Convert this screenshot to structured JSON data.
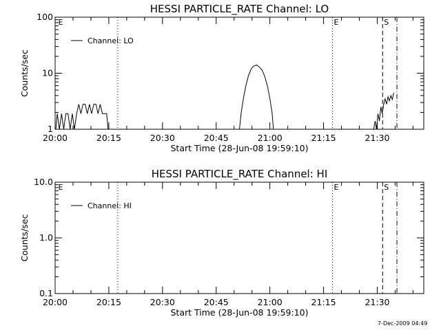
{
  "footer": {
    "timestamp": "7-Dec-2009 04:49"
  },
  "chart_data": [
    {
      "type": "line",
      "title": "HESSI PARTICLE_RATE Channel: LO",
      "xlabel": "Start Time (28-Jun-08 19:59:10)",
      "ylabel": "Counts/sec",
      "yscale": "log",
      "ylim": [
        1,
        100
      ],
      "y_ticks": [
        "1",
        "10",
        "100"
      ],
      "y_tick_values": [
        1,
        10,
        100
      ],
      "xlim_minutes_after_20_00": [
        0,
        103
      ],
      "x_ticks": [
        "20:00",
        "20:15",
        "20:30",
        "20:45",
        "21:00",
        "21:15",
        "21:30"
      ],
      "legend": {
        "label": "Channel: LO",
        "position": "top-left"
      },
      "markers": [
        {
          "label": "E",
          "minute": 0.5,
          "style": "none"
        },
        {
          "label": "",
          "minute": 17.5,
          "style": "dotted"
        },
        {
          "label": "E",
          "minute": 77.5,
          "style": "dotted"
        },
        {
          "label": "S",
          "minute": 91.5,
          "style": "dashed"
        },
        {
          "label": "",
          "minute": 95.5,
          "style": "dashdot"
        }
      ],
      "series": [
        {
          "name": "Channel: LO",
          "segments": [
            [
              [
                0.2,
                1
              ],
              [
                0.6,
                1.9
              ],
              [
                1.2,
                1
              ],
              [
                1.8,
                1.9
              ],
              [
                2.4,
                1
              ],
              [
                3.0,
                1.9
              ],
              [
                3.6,
                1.9
              ],
              [
                4.2,
                1
              ],
              [
                4.8,
                1.9
              ],
              [
                5.4,
                1
              ],
              [
                6.0,
                1.9
              ],
              [
                6.6,
                2.8
              ],
              [
                7.2,
                1.9
              ],
              [
                7.8,
                2.8
              ],
              [
                8.4,
                2.8
              ],
              [
                9.0,
                1.9
              ],
              [
                9.6,
                2.8
              ],
              [
                10.2,
                1.9
              ],
              [
                10.8,
                2.8
              ],
              [
                11.4,
                2.8
              ],
              [
                12.0,
                1.9
              ],
              [
                12.6,
                2.8
              ],
              [
                13.2,
                1.9
              ],
              [
                13.8,
                1.9
              ],
              [
                14.4,
                1.9
              ],
              [
                14.8,
                1
              ]
            ],
            [
              [
                51.5,
                1
              ],
              [
                52.0,
                2
              ],
              [
                52.6,
                3.5
              ],
              [
                53.3,
                6
              ],
              [
                54.0,
                9
              ],
              [
                54.8,
                12
              ],
              [
                55.5,
                13.5
              ],
              [
                56.3,
                14
              ],
              [
                57.0,
                13
              ],
              [
                57.8,
                11.5
              ],
              [
                58.5,
                9
              ],
              [
                59.3,
                6
              ],
              [
                60.0,
                3.5
              ],
              [
                60.6,
                2
              ],
              [
                61.0,
                1
              ]
            ],
            [
              [
                89.0,
                1
              ],
              [
                89.4,
                1.4
              ],
              [
                89.8,
                1
              ],
              [
                90.2,
                1.9
              ],
              [
                90.6,
                1.4
              ],
              [
                91.0,
                2.5
              ],
              [
                91.4,
                1.9
              ],
              [
                91.8,
                2.8
              ],
              [
                92.2,
                3.5
              ],
              [
                92.6,
                2.8
              ],
              [
                93.0,
                3.8
              ],
              [
                93.4,
                3.2
              ],
              [
                93.8,
                4.0
              ],
              [
                94.2,
                3.4
              ],
              [
                94.6,
                4.5
              ]
            ]
          ]
        }
      ]
    },
    {
      "type": "line",
      "title": "HESSI PARTICLE_RATE Channel: HI",
      "xlabel": "Start Time (28-Jun-08 19:59:10)",
      "ylabel": "Counts/sec",
      "yscale": "log",
      "ylim": [
        0.1,
        10
      ],
      "y_ticks": [
        "0.1",
        "1.0",
        "10.0"
      ],
      "y_tick_values": [
        0.1,
        1,
        10
      ],
      "xlim_minutes_after_20_00": [
        0,
        103
      ],
      "x_ticks": [
        "20:00",
        "20:15",
        "20:30",
        "20:45",
        "21:00",
        "21:15",
        "21:30"
      ],
      "legend": {
        "label": "Channel: HI",
        "position": "top-left"
      },
      "markers": [
        {
          "label": "E",
          "minute": 0.5,
          "style": "none"
        },
        {
          "label": "",
          "minute": 17.5,
          "style": "dotted"
        },
        {
          "label": "E",
          "minute": 77.5,
          "style": "dotted"
        },
        {
          "label": "S",
          "minute": 91.5,
          "style": "dashed"
        },
        {
          "label": "",
          "minute": 95.5,
          "style": "dashdot"
        }
      ],
      "series": [
        {
          "name": "Channel: HI",
          "segments": []
        }
      ]
    }
  ]
}
